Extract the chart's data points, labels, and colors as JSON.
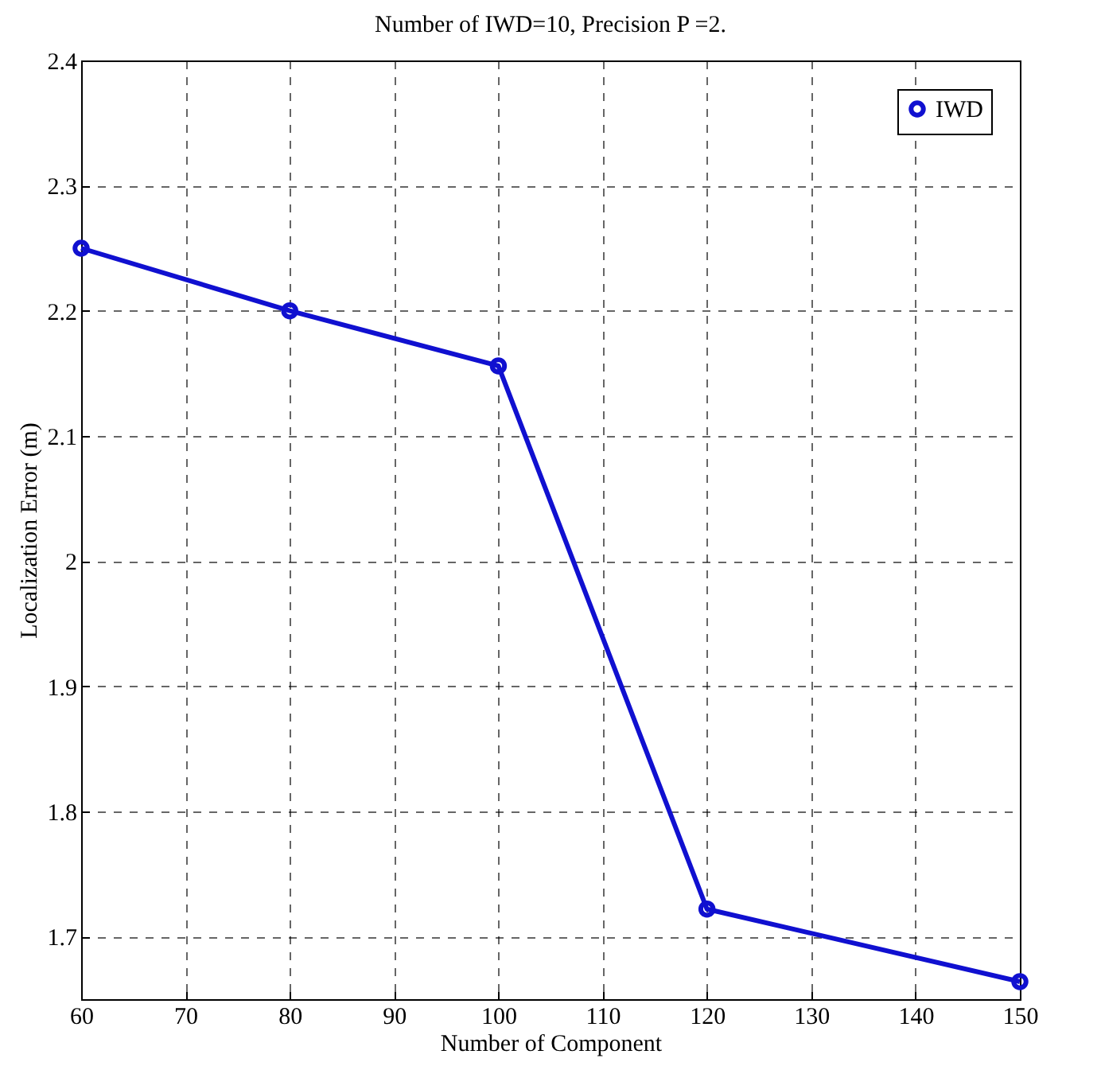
{
  "chart_data": {
    "type": "line",
    "title": "Number of IWD=10, Precision P =2.",
    "xlabel": "Number of Component",
    "ylabel": "Localization Error (m)",
    "x": [
      60,
      80,
      100,
      120,
      150
    ],
    "series": [
      {
        "name": "IWD",
        "color": "#1010d0",
        "values": [
          2.25,
          2.2,
          2.156,
          1.722,
          1.664
        ]
      }
    ],
    "xlim": [
      60,
      150
    ],
    "xticks": [
      60,
      70,
      80,
      90,
      100,
      110,
      120,
      130,
      140,
      150
    ],
    "ylim": [
      1.65,
      2.4
    ],
    "yticks": [
      1.7,
      1.8,
      1.9,
      2,
      2.1,
      2.2,
      2.3,
      2.4
    ],
    "grid": true,
    "legend": "top right",
    "marker": "circle",
    "line_style": "solid"
  }
}
